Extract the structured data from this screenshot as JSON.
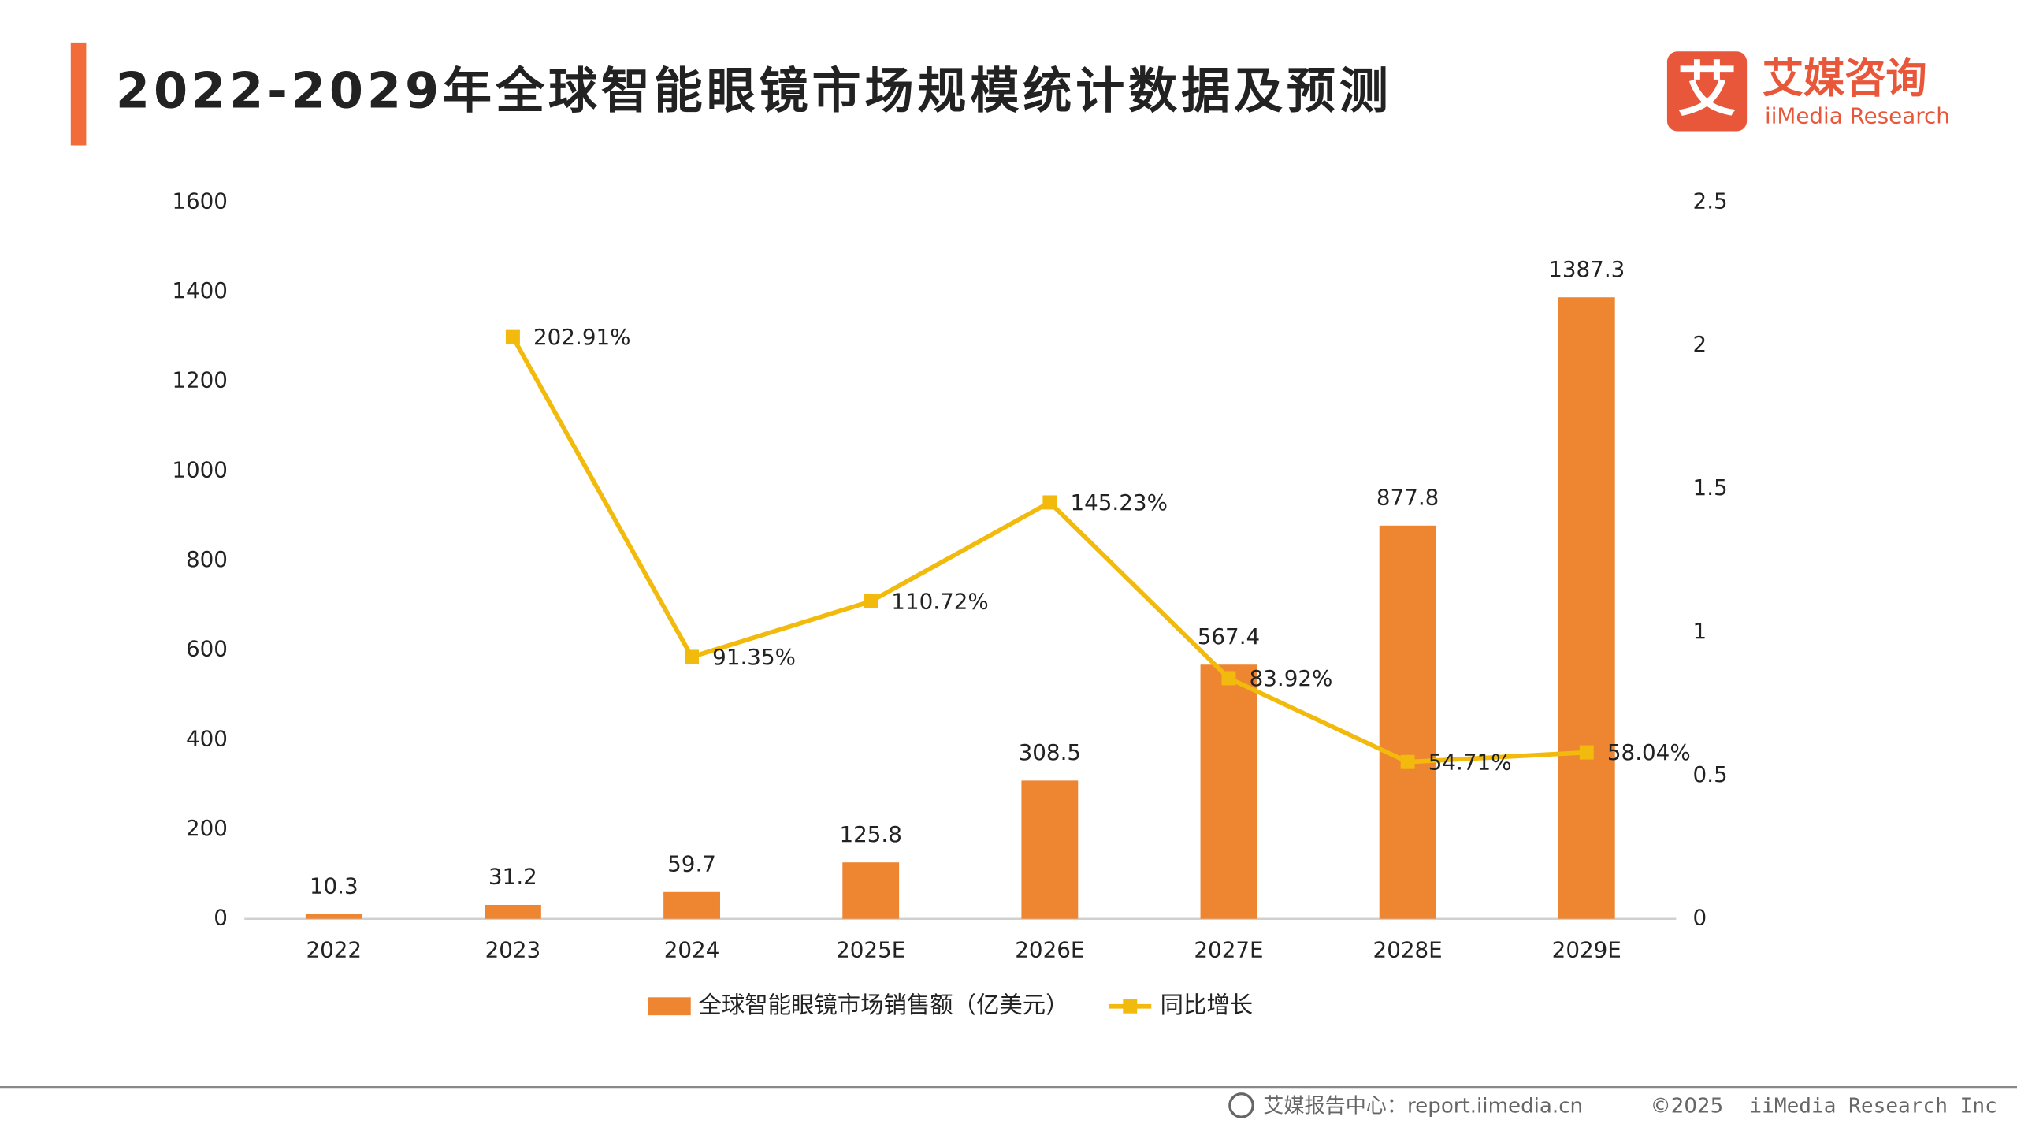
{
  "chart_data": {
    "type": "bar",
    "title": "2022-2029年全球智能眼镜市场规模统计数据及预测",
    "categories": [
      "2022",
      "2023",
      "2024",
      "2025E",
      "2026E",
      "2027E",
      "2028E",
      "2029E"
    ],
    "series": [
      {
        "name": "全球智能眼镜市场销售额（亿美元）",
        "type": "bar",
        "color": "#ED8531",
        "values": [
          10.3,
          31.2,
          59.7,
          125.8,
          308.5,
          567.4,
          877.8,
          1387.3
        ]
      },
      {
        "name": "同比增长",
        "type": "line",
        "axis": "y2",
        "color": "#F2BA0C",
        "values": [
          null,
          2.0291,
          0.9135,
          1.1072,
          1.4523,
          0.8392,
          0.5471,
          0.5804
        ],
        "value_labels": [
          null,
          "202.91%",
          "91.35%",
          "110.72%",
          "145.23%",
          "83.92%",
          "54.71%",
          "58.04%"
        ]
      }
    ],
    "ylim": [
      0,
      1600
    ],
    "yticks": [
      0,
      200,
      400,
      600,
      800,
      1000,
      1200,
      1400,
      1600
    ],
    "y2lim": [
      0,
      2.5
    ],
    "y2ticks": [
      0,
      0.5,
      1,
      1.5,
      2,
      2.5
    ],
    "grid": false,
    "legend": "bottom"
  },
  "logo": {
    "icon": "艾",
    "name": "艾媒咨询",
    "en": "iiMedia Research"
  },
  "footer": {
    "source": "艾媒报告中心：report.iimedia.cn",
    "copyright": "©2025",
    "company": "iiMedia Research Inc"
  }
}
